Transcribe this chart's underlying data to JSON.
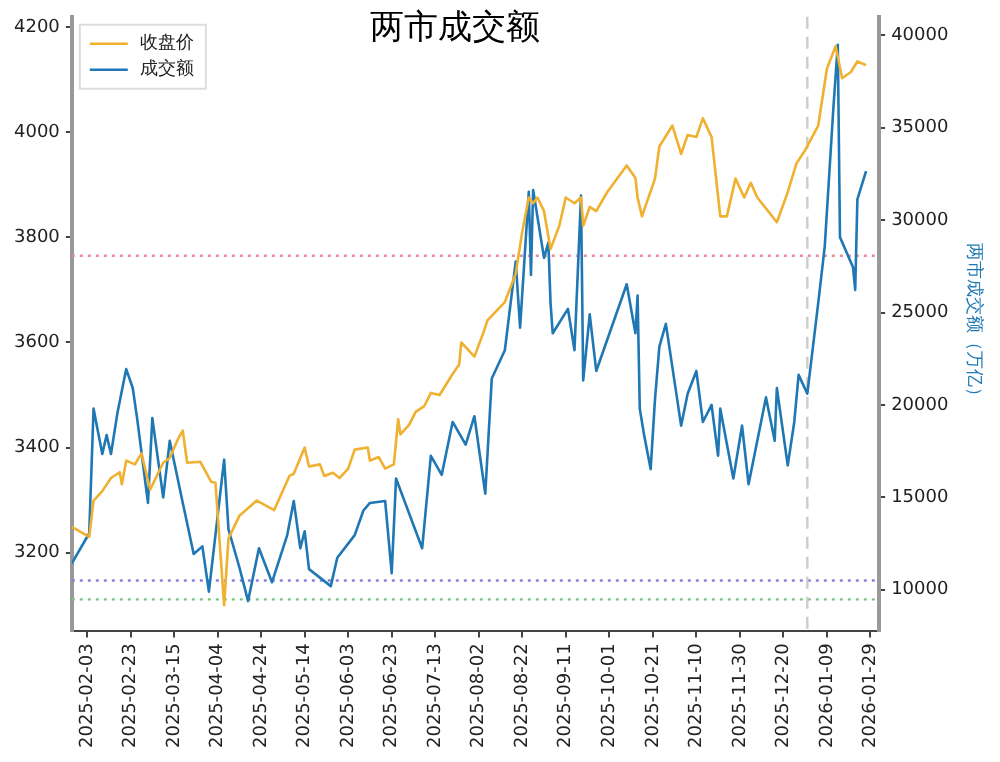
{
  "chart_data": {
    "type": "line",
    "title": "两市成交额",
    "y2label": "两市成交额（万亿）",
    "series": [
      {
        "name": "收盘价",
        "color": "#f0b030",
        "x": [
          "2025-01-27",
          "2025-02-04",
          "2025-02-06",
          "2025-02-10",
          "2025-02-14",
          "2025-02-18",
          "2025-02-19",
          "2025-02-21",
          "2025-02-25",
          "2025-02-28",
          "2025-03-04",
          "2025-03-10",
          "2025-03-13",
          "2025-03-17",
          "2025-03-19",
          "2025-03-21",
          "2025-03-27",
          "2025-04-01",
          "2025-04-03",
          "2025-04-07",
          "2025-04-09",
          "2025-04-14",
          "2025-04-22",
          "2025-04-30",
          "2025-05-07",
          "2025-05-09",
          "2025-05-14",
          "2025-05-16",
          "2025-05-21",
          "2025-05-23",
          "2025-05-27",
          "2025-05-30",
          "2025-06-03",
          "2025-06-06",
          "2025-06-12",
          "2025-06-13",
          "2025-06-17",
          "2025-06-20",
          "2025-06-24",
          "2025-06-26",
          "2025-06-27",
          "2025-07-01",
          "2025-07-04",
          "2025-07-08",
          "2025-07-11",
          "2025-07-15",
          "2025-07-21",
          "2025-07-24",
          "2025-07-25",
          "2025-07-31",
          "2025-08-04",
          "2025-08-06",
          "2025-08-14",
          "2025-08-19",
          "2025-08-22",
          "2025-08-25",
          "2025-08-27",
          "2025-08-29",
          "2025-09-01",
          "2025-09-04",
          "2025-09-08",
          "2025-09-11",
          "2025-09-15",
          "2025-09-18",
          "2025-09-19",
          "2025-09-22",
          "2025-09-25",
          "2025-09-30",
          "2025-10-09",
          "2025-10-13",
          "2025-10-14",
          "2025-10-16",
          "2025-10-22",
          "2025-10-24",
          "2025-10-30",
          "2025-11-03",
          "2025-11-06",
          "2025-11-10",
          "2025-11-13",
          "2025-11-17",
          "2025-11-21",
          "2025-11-24",
          "2025-11-28",
          "2025-12-02",
          "2025-12-05",
          "2025-12-08",
          "2025-12-17",
          "2025-12-22",
          "2025-12-26",
          "2025-12-30",
          "2026-01-05",
          "2026-01-09",
          "2026-01-13",
          "2026-01-16",
          "2026-01-20",
          "2026-01-23",
          "2026-01-27"
        ],
        "values": [
          3249,
          3230,
          3299,
          3317,
          3342,
          3353,
          3330,
          3375,
          3368,
          3389,
          3320,
          3371,
          3380,
          3418,
          3432,
          3371,
          3373,
          3335,
          3333,
          3100,
          3227,
          3270,
          3299,
          3281,
          3346,
          3350,
          3400,
          3364,
          3368,
          3346,
          3352,
          3342,
          3360,
          3396,
          3400,
          3375,
          3382,
          3360,
          3368,
          3454,
          3425,
          3443,
          3468,
          3479,
          3504,
          3500,
          3540,
          3558,
          3600,
          3573,
          3617,
          3642,
          3677,
          3731,
          3811,
          3876,
          3865,
          3876,
          3850,
          3778,
          3822,
          3876,
          3865,
          3876,
          3822,
          3858,
          3850,
          3886,
          3937,
          3913,
          3876,
          3840,
          3912,
          3973,
          4013,
          3959,
          3995,
          3991,
          4027,
          3991,
          3840,
          3840,
          3912,
          3876,
          3904,
          3876,
          3829,
          3886,
          3941,
          3966,
          4013,
          4121,
          4164,
          4103,
          4115,
          4135,
          4128
        ]
      },
      {
        "name": "成交额",
        "color": "#1f77b4",
        "axis": "y2",
        "x": [
          "2025-01-27",
          "2025-02-04",
          "2025-02-06",
          "2025-02-10",
          "2025-02-12",
          "2025-02-14",
          "2025-02-17",
          "2025-02-21",
          "2025-02-24",
          "2025-02-26",
          "2025-03-03",
          "2025-03-05",
          "2025-03-10",
          "2025-03-13",
          "2025-03-19",
          "2025-03-24",
          "2025-03-28",
          "2025-03-31",
          "2025-04-03",
          "2025-04-07",
          "2025-04-09",
          "2025-04-14",
          "2025-04-18",
          "2025-04-23",
          "2025-04-29",
          "2025-05-06",
          "2025-05-09",
          "2025-05-12",
          "2025-05-14",
          "2025-05-16",
          "2025-05-26",
          "2025-05-29",
          "2025-06-06",
          "2025-06-10",
          "2025-06-13",
          "2025-06-20",
          "2025-06-23",
          "2025-06-25",
          "2025-07-07",
          "2025-07-11",
          "2025-07-16",
          "2025-07-21",
          "2025-07-27",
          "2025-07-31",
          "2025-08-05",
          "2025-08-08",
          "2025-08-14",
          "2025-08-19",
          "2025-08-21",
          "2025-08-25",
          "2025-08-26",
          "2025-08-27",
          "2025-09-01",
          "2025-09-03",
          "2025-09-04",
          "2025-09-05",
          "2025-09-12",
          "2025-09-15",
          "2025-09-18",
          "2025-09-19",
          "2025-09-22",
          "2025-09-25",
          "2025-10-09",
          "2025-10-13",
          "2025-10-14",
          "2025-10-15",
          "2025-10-17",
          "2025-10-20",
          "2025-10-22",
          "2025-10-24",
          "2025-10-27",
          "2025-11-03",
          "2025-11-06",
          "2025-11-10",
          "2025-11-13",
          "2025-11-17",
          "2025-11-20",
          "2025-11-21",
          "2025-11-27",
          "2025-12-01",
          "2025-12-04",
          "2025-12-12",
          "2025-12-16",
          "2025-12-17",
          "2025-12-22",
          "2025-12-25",
          "2025-12-27",
          "2025-12-31",
          "2026-01-05",
          "2026-01-08",
          "2026-01-12",
          "2026-01-14",
          "2026-01-15",
          "2026-01-21",
          "2026-01-22",
          "2026-01-23",
          "2026-01-27"
        ],
        "values": [
          11430,
          13060,
          19800,
          17350,
          18370,
          17350,
          19590,
          21940,
          20920,
          19290,
          14700,
          19290,
          15000,
          18060,
          14700,
          11940,
          12350,
          9900,
          12960,
          17040,
          13270,
          11220,
          9390,
          12250,
          10410,
          12960,
          14800,
          12250,
          13170,
          11120,
          10200,
          11730,
          12960,
          14290,
          14700,
          14800,
          10900,
          16020,
          12250,
          17250,
          16220,
          19080,
          17850,
          19390,
          15200,
          21430,
          22960,
          27760,
          24180,
          31530,
          27040,
          31630,
          27960,
          28780,
          25510,
          23880,
          25200,
          22960,
          31330,
          21330,
          24900,
          21840,
          26530,
          23880,
          25920,
          19800,
          18370,
          16530,
          20310,
          23160,
          24390,
          18880,
          20610,
          21840,
          19080,
          20000,
          17250,
          19800,
          16020,
          18880,
          15710,
          20410,
          18060,
          20920,
          16730,
          19080,
          21630,
          20610,
          25510,
          28570,
          36120,
          39490,
          29080,
          27450,
          26220,
          31120,
          32650
        ]
      }
    ],
    "xlim": [
      "2025-01-27",
      "2026-02-02"
    ],
    "xticks": [
      "2025-02-03",
      "2025-02-23",
      "2025-03-15",
      "2025-04-04",
      "2025-04-24",
      "2025-05-14",
      "2025-06-03",
      "2025-06-23",
      "2025-07-13",
      "2025-08-02",
      "2025-08-22",
      "2025-09-11",
      "2025-10-01",
      "2025-10-21",
      "2025-11-10",
      "2025-11-30",
      "2025-12-20",
      "2026-01-09",
      "2026-01-29"
    ],
    "ylim": [
      3050,
      4220
    ],
    "yticks": [
      3200,
      3400,
      3600,
      3800,
      4000,
      4200
    ],
    "y2lim": [
      7750,
      41000
    ],
    "y2ticks": [
      10000,
      15000,
      20000,
      25000,
      30000,
      35000,
      40000
    ],
    "ref_lines": [
      {
        "axis": "y",
        "value": 3765,
        "color": "#e88a9a",
        "line_style": "dotted"
      },
      {
        "axis": "y",
        "value": 3147,
        "color": "#8a7fe0",
        "line_style": "dotted"
      },
      {
        "axis": "y",
        "value": 3111,
        "color": "#7cc47c",
        "line_style": "dotted"
      },
      {
        "axis": "x",
        "value": "2025-12-31",
        "color": "#cccccc",
        "line_style": "dashed"
      }
    ],
    "legend": "top left",
    "grid": false,
    "marker": "none",
    "line_style": "solid"
  }
}
